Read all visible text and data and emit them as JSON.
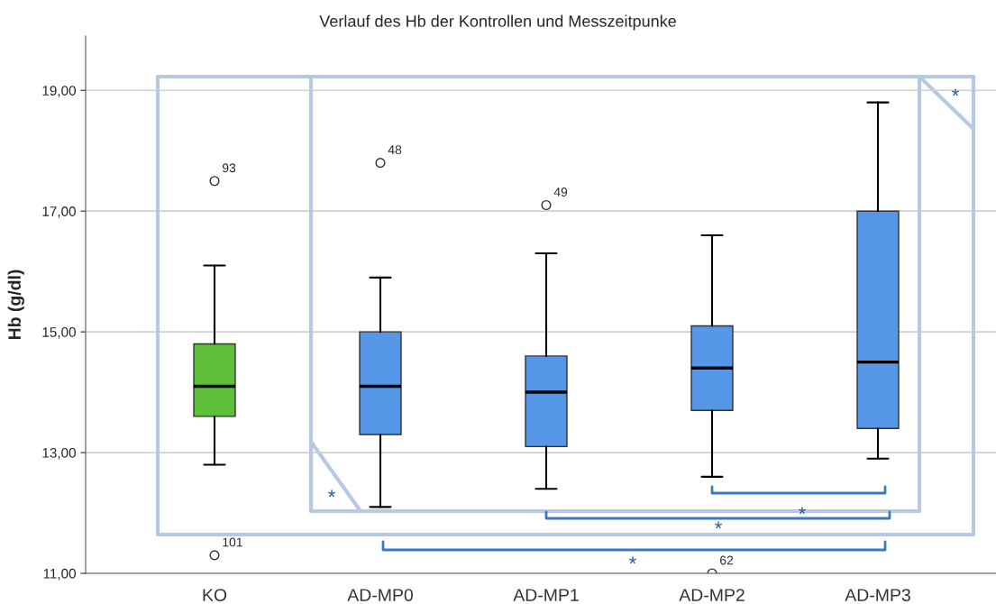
{
  "chart_data": {
    "type": "box",
    "title": "Verlauf des Hb der Kontrollen und Messzeitpunke",
    "ylabel": "Hb (g/dl)",
    "categories": [
      "KO",
      "AD-MP0",
      "AD-MP1",
      "AD-MP2",
      "AD-MP3"
    ],
    "colors": [
      "#5dbf3a",
      "#5596e6",
      "#5596e6",
      "#5596e6",
      "#5596e6"
    ],
    "boxes": [
      {
        "low": 12.8,
        "q1": 13.6,
        "median": 14.1,
        "q3": 14.8,
        "high": 16.1,
        "outliers": [
          17.5,
          11.3
        ]
      },
      {
        "low": 12.1,
        "q1": 13.3,
        "median": 14.1,
        "q3": 15.0,
        "high": 15.9,
        "outliers": [
          17.8
        ]
      },
      {
        "low": 12.4,
        "q1": 13.1,
        "median": 14.0,
        "q3": 14.6,
        "high": 16.3,
        "outliers": [
          17.1
        ]
      },
      {
        "low": 12.6,
        "q1": 13.7,
        "median": 14.4,
        "q3": 15.1,
        "high": 16.6,
        "outliers": [
          11.0
        ]
      },
      {
        "low": 12.9,
        "q1": 13.4,
        "median": 14.5,
        "q3": 17.0,
        "high": 18.8
      }
    ],
    "ylim": [
      11,
      19.9
    ],
    "yticks": [
      {
        "value": 11,
        "label": "11,00"
      },
      {
        "value": 13,
        "label": "13,00"
      },
      {
        "value": 15,
        "label": "15,00"
      },
      {
        "value": 17,
        "label": "17,00"
      },
      {
        "value": 19,
        "label": "19,00"
      }
    ],
    "grid": "y",
    "annotations": [
      "93",
      "101",
      "48",
      "49",
      "62",
      "*",
      "*",
      "*",
      "*",
      "*"
    ]
  }
}
